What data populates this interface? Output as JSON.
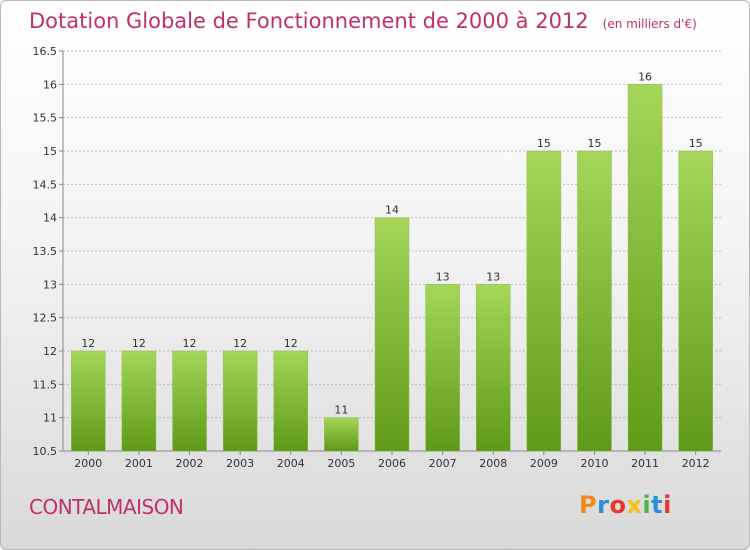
{
  "header": {
    "title": "Dotation Globale de Fonctionnement de 2000 à 2012",
    "subtitle": "(en milliers d'€)"
  },
  "footer": {
    "commune": "CONTALMAISON",
    "logo_text": "Proxiti",
    "logo_colors": [
      "#f08a1c",
      "#2a8fd6",
      "#e8352e",
      "#f5c21a",
      "#4fb24b",
      "#2a8fd6",
      "#e8352e"
    ]
  },
  "colors": {
    "title": "#c0306a",
    "bar_light": "#a4d65a",
    "bar_dark": "#5e9a17",
    "grid": "#bdbdbd"
  },
  "chart_data": {
    "type": "bar",
    "categories": [
      "2000",
      "2001",
      "2002",
      "2003",
      "2004",
      "2005",
      "2006",
      "2007",
      "2008",
      "2009",
      "2010",
      "2011",
      "2012"
    ],
    "values": [
      12,
      12,
      12,
      12,
      12,
      11,
      14,
      13,
      13,
      15,
      15,
      16,
      15
    ],
    "value_labels": [
      "12",
      "12",
      "12",
      "12",
      "12",
      "11",
      "14",
      "13",
      "13",
      "15",
      "15",
      "16",
      "15"
    ],
    "ylim": [
      10.5,
      16.5
    ],
    "yticks": [
      10.5,
      11,
      11.5,
      12,
      12.5,
      13,
      13.5,
      14,
      14.5,
      15,
      15.5,
      16,
      16.5
    ],
    "ytick_labels": [
      "10.5",
      "11",
      "11.5",
      "12",
      "12.5",
      "13",
      "13.5",
      "14",
      "14.5",
      "15",
      "15.5",
      "16",
      "16.5"
    ],
    "title": "Dotation Globale de Fonctionnement de 2000 à 2012",
    "xlabel": "",
    "ylabel": "",
    "grid": true
  }
}
